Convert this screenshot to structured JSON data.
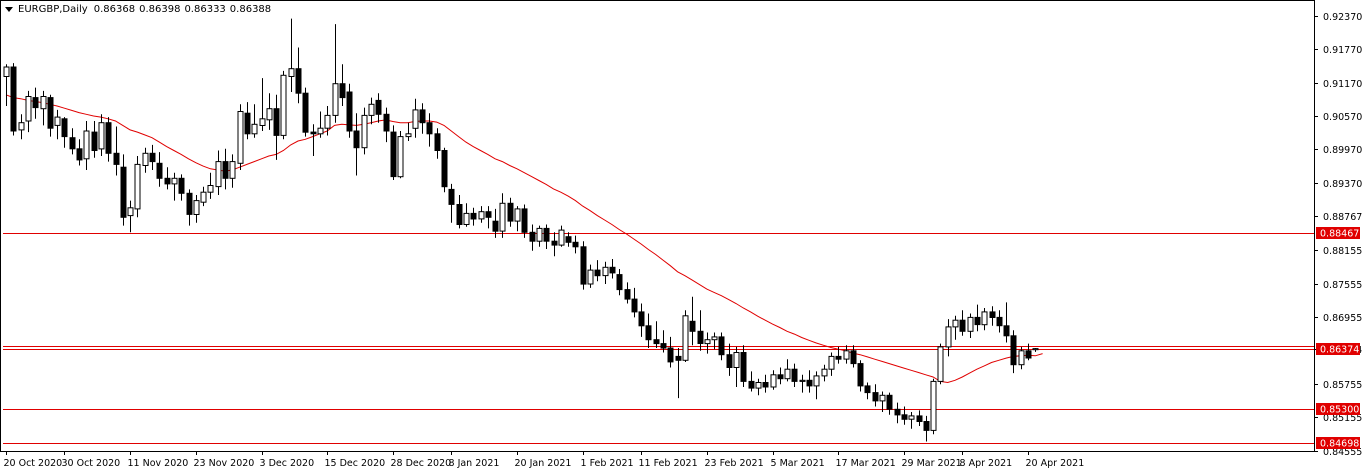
{
  "header": {
    "symbol_timeframe": "EURGBP,Daily",
    "open": "0.86368",
    "high": "0.86398",
    "low": "0.86333",
    "close": "0.86388"
  },
  "colors": {
    "background": "#ffffff",
    "axis": "#000000",
    "candle_outline": "#000000",
    "bull_body": "#ffffff",
    "bear_body": "#000000",
    "level_line": "#e00000",
    "moving_average": "#e00000",
    "tag_text": "#ffffff"
  },
  "chart_data": {
    "type": "candlestick",
    "title": "EURGBP,Daily",
    "ylim": [
      0.8455,
      0.926
    ],
    "y_ticks": [
      "0.92370",
      "0.91770",
      "0.91170",
      "0.90570",
      "0.89970",
      "0.89370",
      "0.88767",
      "0.88155",
      "0.87555",
      "0.86955",
      "0.86374",
      "0.85755",
      "0.85155",
      "0.84555"
    ],
    "x_ticks": [
      "20 Oct 2020",
      "30 Oct 2020",
      "11 Nov 2020",
      "23 Nov 2020",
      "3 Dec 2020",
      "15 Dec 2020",
      "28 Dec 2020",
      "8 Jan 2021",
      "20 Jan 2021",
      "1 Feb 2021",
      "11 Feb 2021",
      "23 Feb 2021",
      "5 Mar 2021",
      "17 Mar 2021",
      "29 Mar 2021",
      "8 Apr 2021",
      "20 Apr 2021"
    ],
    "horizontal_levels": [
      {
        "value": 0.88467,
        "label": "0.88467"
      },
      {
        "value": 0.86374,
        "label": "0.86374"
      },
      {
        "value": 0.8644
      },
      {
        "value": 0.853,
        "label": "0.85300"
      },
      {
        "value": 0.84698,
        "label": "0.84698"
      }
    ],
    "candles": [
      {
        "o": 0.9128,
        "h": 0.915,
        "l": 0.9075,
        "c": 0.9145
      },
      {
        "o": 0.9145,
        "h": 0.9152,
        "l": 0.9022,
        "c": 0.903
      },
      {
        "o": 0.9032,
        "h": 0.906,
        "l": 0.9015,
        "c": 0.9045
      },
      {
        "o": 0.9048,
        "h": 0.9102,
        "l": 0.9028,
        "c": 0.9092
      },
      {
        "o": 0.909,
        "h": 0.9108,
        "l": 0.9052,
        "c": 0.9072
      },
      {
        "o": 0.907,
        "h": 0.9102,
        "l": 0.904,
        "c": 0.9092
      },
      {
        "o": 0.909,
        "h": 0.9095,
        "l": 0.902,
        "c": 0.9035
      },
      {
        "o": 0.904,
        "h": 0.9068,
        "l": 0.9015,
        "c": 0.9055
      },
      {
        "o": 0.9052,
        "h": 0.9055,
        "l": 0.9,
        "c": 0.902
      },
      {
        "o": 0.9018,
        "h": 0.9035,
        "l": 0.8988,
        "c": 0.8998
      },
      {
        "o": 0.8998,
        "h": 0.9015,
        "l": 0.8968,
        "c": 0.8978
      },
      {
        "o": 0.898,
        "h": 0.9048,
        "l": 0.896,
        "c": 0.903
      },
      {
        "o": 0.9028,
        "h": 0.9048,
        "l": 0.8982,
        "c": 0.8995
      },
      {
        "o": 0.8998,
        "h": 0.906,
        "l": 0.8985,
        "c": 0.9045
      },
      {
        "o": 0.9045,
        "h": 0.9055,
        "l": 0.8975,
        "c": 0.899
      },
      {
        "o": 0.899,
        "h": 0.9038,
        "l": 0.895,
        "c": 0.897
      },
      {
        "o": 0.8965,
        "h": 0.8988,
        "l": 0.886,
        "c": 0.8875
      },
      {
        "o": 0.8878,
        "h": 0.8905,
        "l": 0.8848,
        "c": 0.8892
      },
      {
        "o": 0.889,
        "h": 0.8985,
        "l": 0.8875,
        "c": 0.897
      },
      {
        "o": 0.8968,
        "h": 0.9,
        "l": 0.8955,
        "c": 0.899
      },
      {
        "o": 0.899,
        "h": 0.9005,
        "l": 0.896,
        "c": 0.8975
      },
      {
        "o": 0.8972,
        "h": 0.8992,
        "l": 0.893,
        "c": 0.8945
      },
      {
        "o": 0.8945,
        "h": 0.8965,
        "l": 0.8925,
        "c": 0.8935
      },
      {
        "o": 0.8935,
        "h": 0.8955,
        "l": 0.8905,
        "c": 0.8945
      },
      {
        "o": 0.8945,
        "h": 0.8952,
        "l": 0.8905,
        "c": 0.8918
      },
      {
        "o": 0.8918,
        "h": 0.8925,
        "l": 0.886,
        "c": 0.888
      },
      {
        "o": 0.888,
        "h": 0.8915,
        "l": 0.8865,
        "c": 0.8905
      },
      {
        "o": 0.8902,
        "h": 0.893,
        "l": 0.8895,
        "c": 0.892
      },
      {
        "o": 0.892,
        "h": 0.8955,
        "l": 0.8908,
        "c": 0.8932
      },
      {
        "o": 0.893,
        "h": 0.8995,
        "l": 0.8915,
        "c": 0.8975
      },
      {
        "o": 0.8975,
        "h": 0.8998,
        "l": 0.8925,
        "c": 0.8945
      },
      {
        "o": 0.8945,
        "h": 0.8988,
        "l": 0.8928,
        "c": 0.8975
      },
      {
        "o": 0.8972,
        "h": 0.9078,
        "l": 0.896,
        "c": 0.9065
      },
      {
        "o": 0.9062,
        "h": 0.9082,
        "l": 0.9015,
        "c": 0.9025
      },
      {
        "o": 0.9025,
        "h": 0.9078,
        "l": 0.9018,
        "c": 0.9042
      },
      {
        "o": 0.904,
        "h": 0.9125,
        "l": 0.903,
        "c": 0.9052
      },
      {
        "o": 0.905,
        "h": 0.9098,
        "l": 0.9032,
        "c": 0.907
      },
      {
        "o": 0.907,
        "h": 0.9095,
        "l": 0.8978,
        "c": 0.9022
      },
      {
        "o": 0.9022,
        "h": 0.9138,
        "l": 0.9015,
        "c": 0.913
      },
      {
        "o": 0.9128,
        "h": 0.9232,
        "l": 0.91,
        "c": 0.9142
      },
      {
        "o": 0.9142,
        "h": 0.918,
        "l": 0.908,
        "c": 0.9098
      },
      {
        "o": 0.9098,
        "h": 0.9108,
        "l": 0.902,
        "c": 0.9028
      },
      {
        "o": 0.9028,
        "h": 0.9042,
        "l": 0.8985,
        "c": 0.9025
      },
      {
        "o": 0.9025,
        "h": 0.9065,
        "l": 0.9018,
        "c": 0.9035
      },
      {
        "o": 0.9035,
        "h": 0.9075,
        "l": 0.9022,
        "c": 0.9058
      },
      {
        "o": 0.9058,
        "h": 0.9222,
        "l": 0.9045,
        "c": 0.9115
      },
      {
        "o": 0.9115,
        "h": 0.915,
        "l": 0.9075,
        "c": 0.909
      },
      {
        "o": 0.91,
        "h": 0.9115,
        "l": 0.9018,
        "c": 0.903
      },
      {
        "o": 0.903,
        "h": 0.9062,
        "l": 0.895,
        "c": 0.9
      },
      {
        "o": 0.9,
        "h": 0.9072,
        "l": 0.8988,
        "c": 0.9058
      },
      {
        "o": 0.9058,
        "h": 0.909,
        "l": 0.9042,
        "c": 0.9078
      },
      {
        "o": 0.9085,
        "h": 0.9098,
        "l": 0.9045,
        "c": 0.906
      },
      {
        "o": 0.906,
        "h": 0.9072,
        "l": 0.901,
        "c": 0.903
      },
      {
        "o": 0.9028,
        "h": 0.904,
        "l": 0.8942,
        "c": 0.8948
      },
      {
        "o": 0.8948,
        "h": 0.903,
        "l": 0.8945,
        "c": 0.902
      },
      {
        "o": 0.902,
        "h": 0.9045,
        "l": 0.9012,
        "c": 0.9025
      },
      {
        "o": 0.9035,
        "h": 0.9088,
        "l": 0.9018,
        "c": 0.9068
      },
      {
        "o": 0.9068,
        "h": 0.908,
        "l": 0.9025,
        "c": 0.9045
      },
      {
        "o": 0.9045,
        "h": 0.9062,
        "l": 0.9002,
        "c": 0.9025
      },
      {
        "o": 0.9025,
        "h": 0.9035,
        "l": 0.898,
        "c": 0.8995
      },
      {
        "o": 0.8995,
        "h": 0.9,
        "l": 0.892,
        "c": 0.893
      },
      {
        "o": 0.8925,
        "h": 0.8935,
        "l": 0.8865,
        "c": 0.8898
      },
      {
        "o": 0.8898,
        "h": 0.8915,
        "l": 0.8855,
        "c": 0.8862
      },
      {
        "o": 0.8862,
        "h": 0.89,
        "l": 0.8858,
        "c": 0.8882
      },
      {
        "o": 0.8882,
        "h": 0.8892,
        "l": 0.886,
        "c": 0.8872
      },
      {
        "o": 0.8872,
        "h": 0.8895,
        "l": 0.8865,
        "c": 0.8885
      },
      {
        "o": 0.8885,
        "h": 0.8895,
        "l": 0.8855,
        "c": 0.8875
      },
      {
        "o": 0.8868,
        "h": 0.889,
        "l": 0.8838,
        "c": 0.885
      },
      {
        "o": 0.885,
        "h": 0.8918,
        "l": 0.8838,
        "c": 0.89
      },
      {
        "o": 0.89,
        "h": 0.891,
        "l": 0.8858,
        "c": 0.8868
      },
      {
        "o": 0.8868,
        "h": 0.8895,
        "l": 0.885,
        "c": 0.889
      },
      {
        "o": 0.889,
        "h": 0.8898,
        "l": 0.8838,
        "c": 0.8848
      },
      {
        "o": 0.8848,
        "h": 0.8862,
        "l": 0.8815,
        "c": 0.8832
      },
      {
        "o": 0.8832,
        "h": 0.886,
        "l": 0.8822,
        "c": 0.8855
      },
      {
        "o": 0.8855,
        "h": 0.8862,
        "l": 0.8818,
        "c": 0.8832
      },
      {
        "o": 0.8832,
        "h": 0.8848,
        "l": 0.8805,
        "c": 0.8825
      },
      {
        "o": 0.8825,
        "h": 0.886,
        "l": 0.8822,
        "c": 0.8852
      },
      {
        "o": 0.884,
        "h": 0.8848,
        "l": 0.8822,
        "c": 0.883
      },
      {
        "o": 0.883,
        "h": 0.8842,
        "l": 0.881,
        "c": 0.8822
      },
      {
        "o": 0.8822,
        "h": 0.8832,
        "l": 0.8745,
        "c": 0.8755
      },
      {
        "o": 0.8755,
        "h": 0.879,
        "l": 0.8748,
        "c": 0.878
      },
      {
        "o": 0.878,
        "h": 0.8798,
        "l": 0.876,
        "c": 0.877
      },
      {
        "o": 0.877,
        "h": 0.8795,
        "l": 0.8755,
        "c": 0.8785
      },
      {
        "o": 0.8785,
        "h": 0.88,
        "l": 0.8765,
        "c": 0.8775
      },
      {
        "o": 0.8772,
        "h": 0.8782,
        "l": 0.8735,
        "c": 0.8745
      },
      {
        "o": 0.8745,
        "h": 0.8758,
        "l": 0.872,
        "c": 0.8728
      },
      {
        "o": 0.8728,
        "h": 0.8748,
        "l": 0.8695,
        "c": 0.8705
      },
      {
        "o": 0.8705,
        "h": 0.872,
        "l": 0.866,
        "c": 0.868
      },
      {
        "o": 0.868,
        "h": 0.8702,
        "l": 0.864,
        "c": 0.8655
      },
      {
        "o": 0.8655,
        "h": 0.8688,
        "l": 0.864,
        "c": 0.8648
      },
      {
        "o": 0.8648,
        "h": 0.8672,
        "l": 0.8632,
        "c": 0.864
      },
      {
        "o": 0.864,
        "h": 0.866,
        "l": 0.8605,
        "c": 0.8615
      },
      {
        "o": 0.8625,
        "h": 0.864,
        "l": 0.855,
        "c": 0.8618
      },
      {
        "o": 0.8618,
        "h": 0.8708,
        "l": 0.8615,
        "c": 0.8698
      },
      {
        "o": 0.8688,
        "h": 0.8732,
        "l": 0.8645,
        "c": 0.867
      },
      {
        "o": 0.867,
        "h": 0.8708,
        "l": 0.8635,
        "c": 0.8648
      },
      {
        "o": 0.8648,
        "h": 0.8668,
        "l": 0.863,
        "c": 0.8655
      },
      {
        "o": 0.8655,
        "h": 0.8668,
        "l": 0.8638,
        "c": 0.866
      },
      {
        "o": 0.866,
        "h": 0.8668,
        "l": 0.8618,
        "c": 0.8628
      },
      {
        "o": 0.8628,
        "h": 0.8648,
        "l": 0.859,
        "c": 0.8605
      },
      {
        "o": 0.8605,
        "h": 0.8642,
        "l": 0.857,
        "c": 0.8632
      },
      {
        "o": 0.8632,
        "h": 0.8645,
        "l": 0.857,
        "c": 0.858
      },
      {
        "o": 0.858,
        "h": 0.8598,
        "l": 0.8562,
        "c": 0.8568
      },
      {
        "o": 0.8568,
        "h": 0.8585,
        "l": 0.8555,
        "c": 0.8578
      },
      {
        "o": 0.8578,
        "h": 0.8592,
        "l": 0.856,
        "c": 0.857
      },
      {
        "o": 0.857,
        "h": 0.86,
        "l": 0.8565,
        "c": 0.8592
      },
      {
        "o": 0.8592,
        "h": 0.8605,
        "l": 0.8575,
        "c": 0.8585
      },
      {
        "o": 0.8585,
        "h": 0.862,
        "l": 0.858,
        "c": 0.8602
      },
      {
        "o": 0.8602,
        "h": 0.8612,
        "l": 0.857,
        "c": 0.858
      },
      {
        "o": 0.858,
        "h": 0.8592,
        "l": 0.856,
        "c": 0.8582
      },
      {
        "o": 0.8582,
        "h": 0.86,
        "l": 0.856,
        "c": 0.8572
      },
      {
        "o": 0.8572,
        "h": 0.8598,
        "l": 0.8548,
        "c": 0.859
      },
      {
        "o": 0.859,
        "h": 0.861,
        "l": 0.858,
        "c": 0.8602
      },
      {
        "o": 0.8602,
        "h": 0.8632,
        "l": 0.859,
        "c": 0.8625
      },
      {
        "o": 0.8625,
        "h": 0.8642,
        "l": 0.8612,
        "c": 0.862
      },
      {
        "o": 0.862,
        "h": 0.8645,
        "l": 0.8612,
        "c": 0.8635
      },
      {
        "o": 0.8635,
        "h": 0.8645,
        "l": 0.8605,
        "c": 0.8612
      },
      {
        "o": 0.8612,
        "h": 0.8618,
        "l": 0.8562,
        "c": 0.8572
      },
      {
        "o": 0.8572,
        "h": 0.8578,
        "l": 0.8548,
        "c": 0.856
      },
      {
        "o": 0.856,
        "h": 0.8575,
        "l": 0.8535,
        "c": 0.8545
      },
      {
        "o": 0.8545,
        "h": 0.8562,
        "l": 0.8525,
        "c": 0.8555
      },
      {
        "o": 0.8555,
        "h": 0.856,
        "l": 0.852,
        "c": 0.853
      },
      {
        "o": 0.853,
        "h": 0.8542,
        "l": 0.8505,
        "c": 0.852
      },
      {
        "o": 0.852,
        "h": 0.8535,
        "l": 0.8502,
        "c": 0.8512
      },
      {
        "o": 0.8512,
        "h": 0.8525,
        "l": 0.8495,
        "c": 0.8518
      },
      {
        "o": 0.8518,
        "h": 0.8528,
        "l": 0.85,
        "c": 0.8508
      },
      {
        "o": 0.8508,
        "h": 0.8518,
        "l": 0.8472,
        "c": 0.8492
      },
      {
        "o": 0.8492,
        "h": 0.8585,
        "l": 0.8485,
        "c": 0.858
      },
      {
        "o": 0.858,
        "h": 0.8648,
        "l": 0.8575,
        "c": 0.8642
      },
      {
        "o": 0.8642,
        "h": 0.8692,
        "l": 0.8625,
        "c": 0.8678
      },
      {
        "o": 0.8678,
        "h": 0.8698,
        "l": 0.8655,
        "c": 0.869
      },
      {
        "o": 0.869,
        "h": 0.8708,
        "l": 0.8662,
        "c": 0.867
      },
      {
        "o": 0.867,
        "h": 0.8702,
        "l": 0.8658,
        "c": 0.8695
      },
      {
        "o": 0.8695,
        "h": 0.8718,
        "l": 0.867,
        "c": 0.8682
      },
      {
        "o": 0.8682,
        "h": 0.8712,
        "l": 0.8672,
        "c": 0.8705
      },
      {
        "o": 0.8705,
        "h": 0.8715,
        "l": 0.868,
        "c": 0.8695
      },
      {
        "o": 0.8695,
        "h": 0.8708,
        "l": 0.8668,
        "c": 0.868
      },
      {
        "o": 0.868,
        "h": 0.8722,
        "l": 0.865,
        "c": 0.8662
      },
      {
        "o": 0.8662,
        "h": 0.8672,
        "l": 0.8595,
        "c": 0.861
      },
      {
        "o": 0.861,
        "h": 0.8642,
        "l": 0.8602,
        "c": 0.8635
      },
      {
        "o": 0.8635,
        "h": 0.8648,
        "l": 0.8618,
        "c": 0.8622
      },
      {
        "o": 0.8637,
        "h": 0.864,
        "l": 0.8633,
        "c": 0.8639
      }
    ],
    "moving_average": {
      "period_note": "",
      "values": [
        0.9095,
        0.909,
        0.9088,
        0.9085,
        0.9083,
        0.9081,
        0.9078,
        0.9075,
        0.9071,
        0.9067,
        0.9063,
        0.906,
        0.9057,
        0.9055,
        0.9052,
        0.9048,
        0.904,
        0.9032,
        0.9028,
        0.9023,
        0.9018,
        0.901,
        0.9002,
        0.8995,
        0.8988,
        0.898,
        0.8973,
        0.8967,
        0.8962,
        0.896,
        0.8958,
        0.896,
        0.8965,
        0.897,
        0.8975,
        0.898,
        0.8985,
        0.8988,
        0.8995,
        0.9005,
        0.9012,
        0.9015,
        0.902,
        0.9025,
        0.903,
        0.904,
        0.9042,
        0.9041,
        0.904,
        0.9042,
        0.9045,
        0.9048,
        0.905,
        0.9047,
        0.9045,
        0.9045,
        0.9047,
        0.9048,
        0.9048,
        0.9046,
        0.904,
        0.903,
        0.902,
        0.901,
        0.9002,
        0.8995,
        0.8988,
        0.898,
        0.8975,
        0.8968,
        0.8962,
        0.8955,
        0.8948,
        0.8941,
        0.8934,
        0.8926,
        0.892,
        0.8913,
        0.8905,
        0.8895,
        0.8887,
        0.8878,
        0.887,
        0.8862,
        0.8853,
        0.8845,
        0.8836,
        0.8827,
        0.8817,
        0.8808,
        0.8798,
        0.8788,
        0.8777,
        0.877,
        0.8762,
        0.8754,
        0.8746,
        0.874,
        0.8734,
        0.8727,
        0.872,
        0.8712,
        0.8705,
        0.8697,
        0.869,
        0.8683,
        0.8677,
        0.867,
        0.8665,
        0.8659,
        0.8654,
        0.8649,
        0.8645,
        0.8641,
        0.8638,
        0.8635,
        0.8631,
        0.8628,
        0.8624,
        0.862,
        0.8616,
        0.8612,
        0.8608,
        0.8604,
        0.86,
        0.8596,
        0.8592,
        0.8588,
        0.858,
        0.8578,
        0.8582,
        0.8588,
        0.8595,
        0.8602,
        0.8608,
        0.8614,
        0.8618,
        0.8622,
        0.8625,
        0.8626,
        0.8627,
        0.8626,
        0.863
      ]
    }
  }
}
